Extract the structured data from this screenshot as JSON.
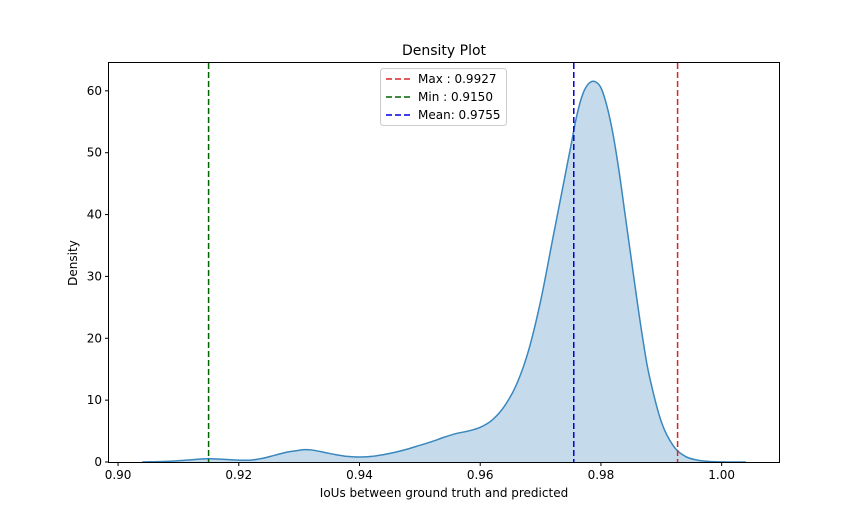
{
  "chart_data": {
    "type": "area",
    "title": "Density Plot",
    "xlabel": "IoUs between ground truth and predicted",
    "ylabel": "Density",
    "xlim": [
      0.8985,
      1.0095
    ],
    "ylim": [
      0,
      64.5
    ],
    "xticks": [
      0.9,
      0.92,
      0.94,
      0.96,
      0.98,
      1.0
    ],
    "xtick_labels": [
      "0.90",
      "0.92",
      "0.94",
      "0.96",
      "0.98",
      "1.00"
    ],
    "yticks": [
      0,
      10,
      20,
      30,
      40,
      50,
      60
    ],
    "ytick_labels": [
      "0",
      "10",
      "20",
      "30",
      "40",
      "50",
      "60"
    ],
    "grid": false,
    "legend_position": "upper center",
    "series": [
      {
        "kind": "kde",
        "color": "#3a87bd",
        "fill": "#c5dbec",
        "x": [
          0.904,
          0.906,
          0.908,
          0.91,
          0.912,
          0.914,
          0.915,
          0.916,
          0.918,
          0.92,
          0.922,
          0.924,
          0.926,
          0.928,
          0.93,
          0.931,
          0.932,
          0.934,
          0.936,
          0.938,
          0.94,
          0.942,
          0.944,
          0.946,
          0.948,
          0.95,
          0.952,
          0.954,
          0.956,
          0.958,
          0.96,
          0.962,
          0.964,
          0.966,
          0.968,
          0.97,
          0.972,
          0.974,
          0.975,
          0.976,
          0.977,
          0.978,
          0.979,
          0.98,
          0.981,
          0.982,
          0.983,
          0.984,
          0.985,
          0.986,
          0.987,
          0.988,
          0.99,
          0.992,
          0.994,
          0.996,
          0.998,
          1.0,
          1.002,
          1.004
        ],
        "y": [
          0.0,
          0.05,
          0.1,
          0.2,
          0.35,
          0.5,
          0.55,
          0.5,
          0.4,
          0.3,
          0.3,
          0.6,
          1.1,
          1.6,
          1.9,
          2.0,
          1.95,
          1.6,
          1.2,
          0.9,
          0.8,
          0.9,
          1.2,
          1.6,
          2.1,
          2.7,
          3.3,
          4.0,
          4.6,
          5.0,
          5.6,
          6.8,
          9.0,
          12.5,
          18.0,
          26.0,
          36.0,
          46.0,
          51.0,
          56.0,
          59.5,
          61.2,
          61.5,
          60.5,
          57.5,
          53.0,
          47.0,
          40.0,
          33.0,
          26.0,
          19.5,
          14.0,
          6.5,
          2.6,
          0.9,
          0.3,
          0.08,
          0.02,
          0.0,
          0.0
        ]
      }
    ],
    "vlines": [
      {
        "label": "Max : 0.9927",
        "x": 0.9927,
        "color": "#d62728"
      },
      {
        "label": "Min : 0.9150",
        "x": 0.915,
        "color": "#006400"
      },
      {
        "label": "Mean: 0.9755",
        "x": 0.9755,
        "color": "#0000dd"
      }
    ]
  }
}
